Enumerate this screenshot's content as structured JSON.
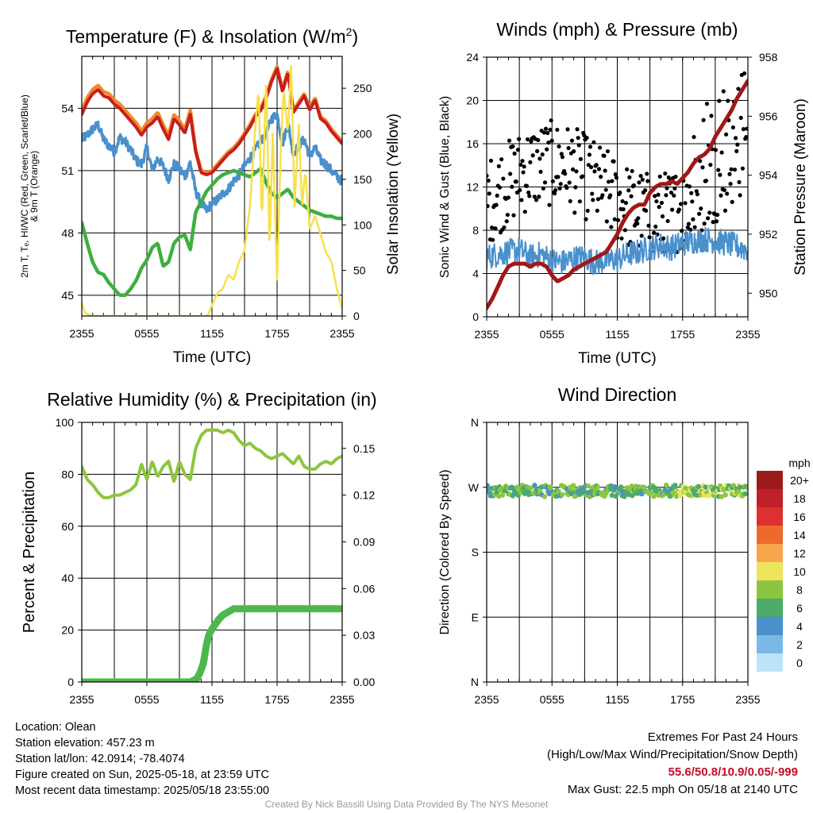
{
  "chart_data": [
    {
      "type": "line",
      "title": "Temperature (F) & Insolation (W/m",
      "title_sup": "2",
      "title_end": ")",
      "xlabel": "Time (UTC)",
      "ylabel_lines": [
        "2m T, Tₑ, HI/WC (Red, Green, Scarlet/Blue)",
        "& 9m T (Orange)"
      ],
      "ylabel_right": "Solar Insolation (Yellow)",
      "x_ticks": [
        "2355",
        "0555",
        "1155",
        "1755",
        "2355"
      ],
      "xlim": [
        0,
        24
      ],
      "ylim": [
        44,
        56.5
      ],
      "y_ticks": [
        "45",
        "48",
        "51",
        "54"
      ],
      "y2lim": [
        0,
        285
      ],
      "y2_ticks": [
        "0",
        "50",
        "100",
        "150",
        "200",
        "250"
      ],
      "series": [
        {
          "axis": "left",
          "color": "#f08a2a",
          "width": 4.5,
          "x": [
            0,
            0.5,
            1,
            1.5,
            2,
            2.5,
            3,
            3.5,
            4,
            4.5,
            5,
            5.5,
            6,
            6.5,
            7,
            7.5,
            8,
            8.5,
            9,
            9.5,
            10,
            10.5,
            11,
            11.5,
            12,
            12.5,
            13,
            13.5,
            14,
            14.5,
            15,
            15.5,
            16,
            16.5,
            17,
            17.5,
            18,
            18.5,
            19,
            19.5,
            20,
            20.5,
            21,
            21.5,
            22,
            22.5,
            23,
            23.5,
            24
          ],
          "y": [
            53.9,
            54.5,
            54.9,
            55.1,
            54.8,
            54.7,
            54.4,
            54.2,
            53.9,
            53.6,
            53.3,
            52.9,
            53.3,
            53.5,
            53.8,
            53.2,
            52.7,
            53.7,
            53.4,
            53.0,
            53.9,
            52.0,
            51.0,
            50.9,
            51.0,
            51.3,
            51.6,
            51.9,
            52.1,
            52.4,
            52.8,
            53.2,
            53.7,
            54.0,
            54.6,
            55.4,
            56.0,
            54.9,
            55.8,
            53.9,
            54.3,
            54.7,
            54.0,
            54.5,
            53.6,
            53.4,
            53.0,
            52.7,
            52.4
          ]
        },
        {
          "axis": "left",
          "color": "#c81e1e",
          "width": 4,
          "x": [
            0,
            0.5,
            1,
            1.5,
            2,
            2.5,
            3,
            3.5,
            4,
            4.5,
            5,
            5.5,
            6,
            6.5,
            7,
            7.5,
            8,
            8.5,
            9,
            9.5,
            10,
            10.5,
            11,
            11.5,
            12,
            12.5,
            13,
            13.5,
            14,
            14.5,
            15,
            15.5,
            16,
            16.5,
            17,
            17.5,
            18,
            18.5,
            19,
            19.5,
            20,
            20.5,
            21,
            21.5,
            22,
            22.5,
            23,
            23.5,
            24
          ],
          "y": [
            53.7,
            54.3,
            54.7,
            54.9,
            54.6,
            54.5,
            54.2,
            54.0,
            53.7,
            53.4,
            53.1,
            52.7,
            53.1,
            53.3,
            53.6,
            53.0,
            52.5,
            53.5,
            53.2,
            52.8,
            53.7,
            51.9,
            50.9,
            50.8,
            50.9,
            51.2,
            51.5,
            51.8,
            52.0,
            52.3,
            52.7,
            53.1,
            53.6,
            53.9,
            54.5,
            55.3,
            55.9,
            54.8,
            55.7,
            53.8,
            54.2,
            54.6,
            53.9,
            54.4,
            53.5,
            53.3,
            52.9,
            52.6,
            52.3
          ]
        },
        {
          "axis": "left",
          "color": "#4a90cc",
          "width": 3.5,
          "jitter": 0.45,
          "x": [
            0,
            0.5,
            1,
            1.5,
            2,
            2.5,
            3,
            3.5,
            4,
            4.5,
            5,
            5.5,
            6,
            6.5,
            7,
            7.5,
            8,
            8.5,
            9,
            9.5,
            10,
            10.5,
            11,
            11.5,
            12,
            12.5,
            13,
            13.5,
            14,
            14.5,
            15,
            15.5,
            16,
            16.5,
            17,
            17.5,
            18,
            18.5,
            19,
            19.5,
            20,
            20.5,
            21,
            21.5,
            22,
            22.5,
            23,
            23.5,
            24
          ],
          "y": [
            52.5,
            52.7,
            53.0,
            53.2,
            52.5,
            52.2,
            51.9,
            52.6,
            52.4,
            52.0,
            51.5,
            51.3,
            52.1,
            51.0,
            51.6,
            51.2,
            50.6,
            51.3,
            51.1,
            50.7,
            51.4,
            50.0,
            49.4,
            49.1,
            49.4,
            49.6,
            49.9,
            50.1,
            50.5,
            50.8,
            51.2,
            51.6,
            52.0,
            52.4,
            52.8,
            53.5,
            53.7,
            52.3,
            53.3,
            51.8,
            52.2,
            52.5,
            51.7,
            52.1,
            51.5,
            51.3,
            51.0,
            50.7,
            50.5
          ]
        },
        {
          "axis": "left",
          "color": "#3fae3f",
          "width": 4.5,
          "x": [
            0,
            0.5,
            1,
            1.5,
            2,
            2.5,
            3,
            3.5,
            4,
            4.5,
            5,
            5.5,
            6,
            6.5,
            7,
            7.5,
            8,
            8.5,
            9,
            9.5,
            10,
            10.5,
            11,
            11.5,
            12,
            12.5,
            13,
            13.5,
            14,
            14.5,
            15,
            15.5,
            16,
            16.5,
            17,
            17.5,
            18,
            18.5,
            19,
            19.5,
            20,
            20.5,
            21,
            21.5,
            22,
            22.5,
            23,
            23.5,
            24
          ],
          "y": [
            48.5,
            47.5,
            46.6,
            46.1,
            46.0,
            45.6,
            45.3,
            45.0,
            45.0,
            45.3,
            45.7,
            46.3,
            46.7,
            47.3,
            47.5,
            46.4,
            46.6,
            47.5,
            47.8,
            47.9,
            47.2,
            49.0,
            49.5,
            50.0,
            50.3,
            50.6,
            50.8,
            50.9,
            51.0,
            50.9,
            50.8,
            50.7,
            50.9,
            51.1,
            50.4,
            49.9,
            49.7,
            49.9,
            50.1,
            49.7,
            49.5,
            49.3,
            49.1,
            49.0,
            48.9,
            48.8,
            48.8,
            48.7,
            48.7
          ]
        },
        {
          "axis": "right",
          "color": "#f7e04a",
          "width": 2.5,
          "x": [
            0,
            0.3,
            1,
            3,
            6,
            9,
            11.6,
            12,
            12.5,
            13,
            13.5,
            14,
            14.5,
            15,
            15.5,
            16,
            16.3,
            16.6,
            17,
            17.3,
            17.6,
            18,
            18.3,
            18.6,
            19,
            19.3,
            19.6,
            20,
            20.3,
            20.6,
            21,
            21.5,
            22,
            22.5,
            23,
            23.5,
            24
          ],
          "y": [
            15,
            3,
            0,
            0,
            0,
            0,
            0,
            12,
            25,
            30,
            45,
            40,
            60,
            72,
            120,
            210,
            250,
            100,
            270,
            70,
            200,
            40,
            170,
            250,
            200,
            280,
            120,
            210,
            120,
            160,
            95,
            110,
            90,
            70,
            60,
            30,
            8
          ]
        }
      ]
    },
    {
      "type": "line",
      "title": "Winds (mph) & Pressure (mb)",
      "xlabel": "Time (UTC)",
      "ylabel": "Sonic Wind & Gust (Blue, Black)",
      "ylabel_right": "Station Pressure (Maroon)",
      "x_ticks": [
        "2355",
        "0555",
        "1155",
        "1755",
        "2355"
      ],
      "xlim": [
        0,
        24
      ],
      "ylim": [
        0,
        24
      ],
      "y_ticks": [
        "0",
        "4",
        "8",
        "12",
        "16",
        "20",
        "24"
      ],
      "y2lim": [
        949.2,
        958
      ],
      "y2_ticks": [
        "950",
        "952",
        "954",
        "956",
        "958"
      ],
      "series": [
        {
          "axis": "left",
          "color": "#4a90cc",
          "width": 2,
          "jitter": 2.4,
          "steps": 5,
          "x": [
            0,
            1,
            2,
            3,
            4,
            5,
            6,
            7,
            8,
            9,
            10,
            11,
            12,
            13,
            14,
            15,
            16,
            17,
            18,
            19,
            20,
            21,
            22,
            23,
            24
          ],
          "y": [
            5.5,
            5.8,
            6.0,
            6.2,
            5.5,
            5.8,
            5.2,
            5.0,
            5.4,
            5.5,
            5.0,
            5.2,
            5.3,
            5.8,
            6.0,
            6.4,
            6.6,
            6.4,
            6.8,
            7.0,
            7.2,
            7.0,
            6.8,
            6.5,
            6.2
          ]
        },
        {
          "axis": "right",
          "color": "#a01818",
          "width": 5,
          "x": [
            0,
            0.5,
            1,
            1.5,
            2,
            2.5,
            3,
            3.5,
            4,
            4.5,
            5,
            5.5,
            6,
            6.5,
            7,
            7.5,
            8,
            8.5,
            9,
            9.5,
            10,
            10.5,
            11,
            11.5,
            12,
            12.5,
            13,
            13.5,
            14,
            14.5,
            15,
            15.5,
            16,
            16.5,
            17,
            17.5,
            18,
            18.5,
            19,
            19.5,
            20,
            20.5,
            21,
            21.5,
            22,
            22.5,
            23,
            23.5,
            24
          ],
          "y": [
            949.5,
            949.8,
            950.2,
            950.6,
            950.9,
            951.0,
            951.0,
            951.0,
            950.9,
            951.0,
            951.0,
            950.9,
            950.6,
            950.4,
            950.5,
            950.6,
            950.8,
            950.9,
            951.0,
            951.1,
            951.2,
            951.3,
            951.4,
            951.7,
            952.0,
            952.4,
            952.7,
            952.9,
            953.0,
            953.0,
            953.4,
            953.6,
            953.7,
            953.7,
            953.8,
            953.7,
            953.9,
            954.1,
            954.4,
            954.6,
            954.7,
            954.9,
            955.3,
            955.6,
            955.9,
            956.2,
            956.6,
            956.9,
            957.2
          ]
        }
      ],
      "gust_points": {
        "color": "#000000",
        "count": 300,
        "min": 6,
        "max": 22.5
      }
    },
    {
      "type": "line",
      "title": "Relative Humidity (%) & Precipitation (in)",
      "ylabel": "Percent & Precipitation",
      "x_ticks": [
        "2355",
        "0555",
        "1155",
        "1755",
        "2355"
      ],
      "xlim": [
        0,
        24
      ],
      "ylim": [
        0,
        100
      ],
      "y_ticks": [
        "0",
        "20",
        "40",
        "60",
        "80",
        "100"
      ],
      "y2lim": [
        0,
        0.1667
      ],
      "y2_ticks": [
        "0.00",
        "0.03",
        "0.06",
        "0.09",
        "0.12",
        "0.15"
      ],
      "series": [
        {
          "axis": "left",
          "color": "#8cc63f",
          "width": 4,
          "x": [
            0,
            0.5,
            1,
            1.5,
            2,
            2.5,
            3,
            3.5,
            4,
            4.5,
            5,
            5.5,
            6,
            6.5,
            7,
            7.5,
            8,
            8.5,
            9,
            9.5,
            10,
            10.5,
            11,
            11.5,
            12,
            12.5,
            13,
            13.5,
            14,
            14.5,
            15,
            15.5,
            16,
            16.5,
            17,
            17.5,
            18,
            18.5,
            19,
            19.5,
            20,
            20.5,
            21,
            21.5,
            22,
            22.5,
            23,
            23.5,
            24
          ],
          "y": [
            83,
            78,
            76,
            73,
            71,
            71,
            72,
            72,
            73,
            74,
            76,
            84,
            78,
            85,
            79,
            83,
            85,
            77,
            85,
            80,
            78,
            90,
            95,
            97,
            97,
            97,
            96,
            97,
            96,
            93,
            91,
            92,
            90,
            89,
            87,
            86,
            87,
            88,
            86,
            84,
            87,
            83,
            82,
            82,
            84,
            85,
            84,
            86,
            87
          ]
        },
        {
          "axis": "right",
          "color": "#4cb84c",
          "width": 9,
          "x": [
            0,
            2,
            4,
            6,
            8,
            10,
            10.6,
            10.9,
            11.2,
            11.5,
            11.7,
            12.0,
            12.3,
            12.6,
            13.0,
            13.5,
            14.0,
            16,
            18,
            20,
            22,
            24
          ],
          "y": [
            0,
            0,
            0,
            0,
            0,
            0,
            0.002,
            0.006,
            0.012,
            0.024,
            0.03,
            0.034,
            0.037,
            0.04,
            0.043,
            0.045,
            0.047,
            0.047,
            0.047,
            0.047,
            0.047,
            0.047
          ]
        }
      ]
    },
    {
      "type": "scatter",
      "title": "Wind Direction",
      "ylabel": "Direction (Colored By Speed)",
      "x_ticks": [
        "2355",
        "0555",
        "1155",
        "1755",
        "2355"
      ],
      "xlim": [
        0,
        24
      ],
      "ylim": [
        0,
        360
      ],
      "y_ticks": [
        "N",
        "E",
        "S",
        "W",
        "N"
      ],
      "points": {
        "count": 280,
        "center": 265,
        "spread": 16
      },
      "colorbar": {
        "title": "mph",
        "labels": [
          "20+",
          "18",
          "16",
          "14",
          "12",
          "10",
          "8",
          "6",
          "4",
          "2",
          "0"
        ],
        "colors": [
          "#9b1b1b",
          "#c0202a",
          "#dd3030",
          "#ee6a2a",
          "#f7a54a",
          "#ece45a",
          "#8cc63f",
          "#4caa6a",
          "#4a90cc",
          "#7ab8e6",
          "#bde3f7"
        ]
      }
    }
  ],
  "info": {
    "location": "Location: Olean",
    "elevation": "Station elevation: 457.23 m",
    "latlon": "Station lat/lon: 42.0914; -78.4074",
    "created": "Figure created on Sun, 2025-05-18, at 23:59 UTC",
    "recent": "Most recent data timestamp: 2025/05/18 23:55:00"
  },
  "extremes": {
    "title": "Extremes For Past 24 Hours",
    "subtitle": "(High/Low/Max Wind/Precipitation/Snow Depth)",
    "values": "55.6/50.8/10.9/0.05/-999",
    "max_gust": "Max Gust: 22.5 mph On 05/18 at 2140 UTC"
  },
  "credit": "Created By Nick Bassill Using Data Provided By The NYS Mesonet"
}
